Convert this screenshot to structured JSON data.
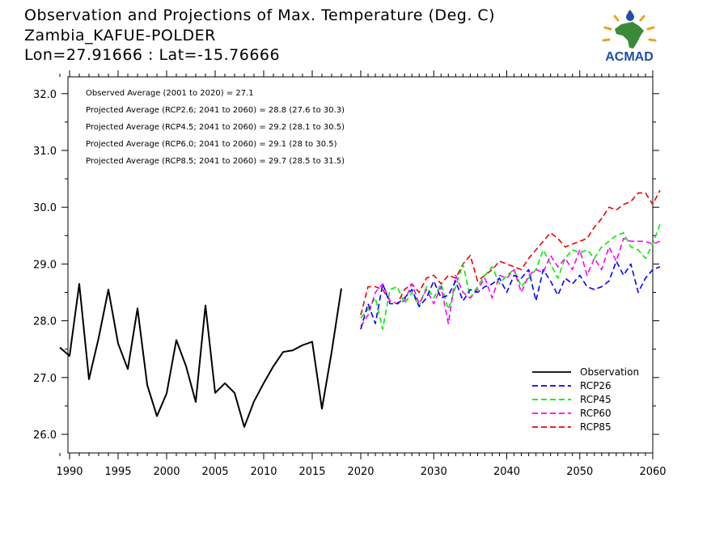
{
  "header": {
    "title_line1": "Observation and Projections of Max. Temperature (Deg. C)",
    "title_line2": "Zambia_KAFUE-POLDER",
    "title_line3": "Lon=27.91666 : Lat=-15.76666"
  },
  "logo": {
    "text": "ACMAD",
    "icon": "africa-sun-drop-logo-icon"
  },
  "colors": {
    "observation": "#000000",
    "rcp26": "#0000ff",
    "rcp45": "#00ee00",
    "rcp60": "#ff00ff",
    "rcp85": "#ee0000"
  },
  "chart_data": {
    "type": "line",
    "xlim": [
      1989,
      2060
    ],
    "ylim": [
      25.65,
      32.3
    ],
    "x_ticks": [
      1990,
      1995,
      2000,
      2005,
      2010,
      2015,
      2020,
      2030,
      2040,
      2050,
      2060
    ],
    "y_ticks": [
      26.0,
      27.0,
      28.0,
      29.0,
      30.0,
      31.0,
      32.0
    ],
    "annotations": [
      "Observed Average (2001 to 2020) = 27.1",
      "Projected Average (RCP2.6; 2041 to 2060) = 28.8 (27.6 to 30.3)",
      "Projected Average (RCP4.5; 2041 to 2060) = 29.2 (28.1 to 30.5)",
      "Projected Average (RCP6.0; 2041 to 2060) = 29.1 (28 to 30.5)",
      "Projected Average (RCP8.5; 2041 to 2060) = 29.7 (28.5 to 31.5)"
    ],
    "legend": [
      "Observation",
      "RCP26",
      "RCP45",
      "RCP60",
      "RCP85"
    ],
    "legend_position": "bottom-right",
    "series": [
      {
        "name": "Observation",
        "style": "solid",
        "x_start": 1989,
        "values": [
          27.53,
          27.38,
          28.65,
          26.97,
          27.7,
          28.55,
          27.6,
          27.15,
          28.22,
          26.87,
          26.32,
          26.72,
          27.66,
          27.2,
          26.57,
          28.27,
          26.73,
          26.9,
          26.73,
          26.13,
          26.58,
          26.9,
          27.2,
          27.45,
          27.48,
          27.57,
          27.63,
          26.45,
          27.45,
          28.57
        ]
      },
      {
        "name": "RCP26",
        "style": "dashed",
        "x_start": 2020,
        "values": [
          27.85,
          28.3,
          27.95,
          28.65,
          28.3,
          28.3,
          28.4,
          28.55,
          28.25,
          28.4,
          28.7,
          28.4,
          28.45,
          28.7,
          28.35,
          28.55,
          28.5,
          28.6,
          28.65,
          28.75,
          28.5,
          28.8,
          28.75,
          28.9,
          28.35,
          28.9,
          28.7,
          28.45,
          28.75,
          28.65,
          28.8,
          28.6,
          28.55,
          28.6,
          28.7,
          29.05,
          28.8,
          29.0,
          28.5,
          28.75,
          28.9,
          28.95
        ]
      },
      {
        "name": "RCP45",
        "style": "dashed",
        "x_start": 2020,
        "values": [
          28.05,
          28.2,
          28.4,
          27.85,
          28.55,
          28.6,
          28.3,
          28.5,
          28.25,
          28.6,
          28.4,
          28.65,
          28.2,
          28.6,
          29.0,
          28.4,
          28.6,
          28.8,
          28.95,
          28.65,
          28.8,
          28.9,
          28.6,
          28.75,
          28.9,
          29.25,
          29.0,
          28.75,
          29.1,
          29.25,
          29.2,
          29.25,
          29.1,
          29.3,
          29.4,
          29.5,
          29.55,
          29.3,
          29.25,
          29.1,
          29.35,
          29.7
        ]
      },
      {
        "name": "RCP60",
        "style": "dashed",
        "x_start": 2020,
        "values": [
          27.9,
          28.1,
          28.5,
          28.65,
          28.35,
          28.3,
          28.35,
          28.65,
          28.3,
          28.55,
          28.3,
          28.6,
          27.95,
          28.8,
          28.5,
          28.4,
          28.55,
          28.75,
          28.4,
          28.8,
          28.75,
          28.9,
          28.5,
          28.8,
          28.9,
          28.85,
          29.15,
          28.95,
          29.1,
          28.9,
          29.25,
          28.8,
          29.1,
          28.9,
          29.3,
          29.05,
          29.45,
          29.4,
          29.4,
          29.4,
          29.35,
          29.4
        ]
      },
      {
        "name": "RCP85",
        "style": "dashed",
        "x_start": 2020,
        "values": [
          28.1,
          28.6,
          28.6,
          28.55,
          28.35,
          28.3,
          28.55,
          28.65,
          28.5,
          28.75,
          28.8,
          28.65,
          28.8,
          28.75,
          29.0,
          29.15,
          28.7,
          28.8,
          28.9,
          29.05,
          29.0,
          28.95,
          28.9,
          29.1,
          29.25,
          29.4,
          29.55,
          29.45,
          29.3,
          29.35,
          29.4,
          29.45,
          29.65,
          29.8,
          30.0,
          29.95,
          30.05,
          30.1,
          30.25,
          30.25,
          30.05,
          30.3
        ]
      }
    ]
  }
}
